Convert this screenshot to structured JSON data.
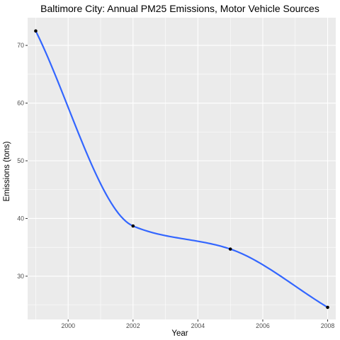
{
  "chart_data": {
    "type": "line",
    "title": "Baltimore City: Annual PM25 Emissions, Motor Vehicle Sources",
    "xlabel": "Year",
    "ylabel": "Emissions (tons)",
    "xlim": [
      1998.75,
      2008.25
    ],
    "ylim": [
      22.5,
      74.8
    ],
    "xticks": [
      2000,
      2002,
      2004,
      2006,
      2008
    ],
    "xtick_labels": [
      "2000",
      "2002",
      "2004",
      "2006",
      "2008"
    ],
    "yticks": [
      30,
      40,
      50,
      60,
      70
    ],
    "ytick_labels": [
      "30",
      "40",
      "50",
      "60",
      "70"
    ],
    "grid": true,
    "series": [
      {
        "name": "Motor Vehicle Sources",
        "x": [
          1999,
          2002,
          2005,
          2008
        ],
        "values": [
          72.5,
          38.7,
          34.7,
          24.6
        ],
        "line_color": "#3366ff",
        "point_color": "#000000",
        "smoothed": true
      }
    ],
    "panel_color": "#ebebeb",
    "grid_color": "#ffffff"
  }
}
